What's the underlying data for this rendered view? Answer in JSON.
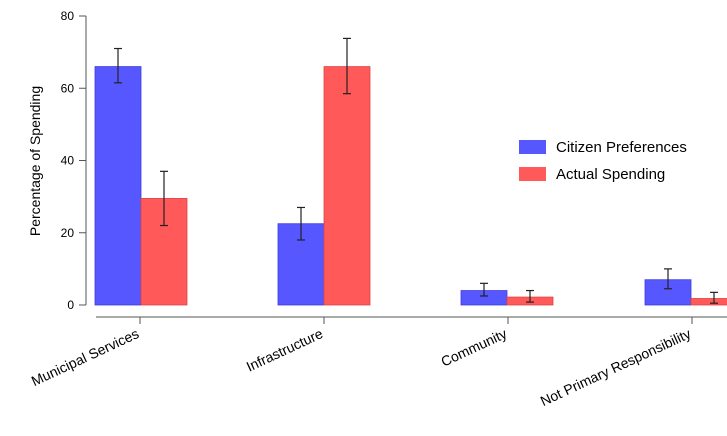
{
  "chart_data": {
    "type": "bar",
    "title": "",
    "xlabel": "",
    "ylabel": "Percentage of Spending",
    "ylim": [
      0,
      80
    ],
    "yticks": [
      0,
      20,
      40,
      60,
      80
    ],
    "grid": false,
    "legend_position": "right",
    "categories": [
      "Municipal Services",
      "Infrastructure",
      "Community",
      "Not Primary Responsibility"
    ],
    "series": [
      {
        "name": "Citizen Preferences",
        "color": "#5757ff",
        "values": [
          66,
          22.5,
          4,
          7
        ],
        "error_low": [
          61.5,
          18,
          2.5,
          4.5
        ],
        "error_high": [
          71,
          27,
          6,
          10
        ]
      },
      {
        "name": "Actual Spending",
        "color": "#ff5959",
        "values": [
          29.5,
          66,
          2.2,
          1.8
        ],
        "error_low": [
          22,
          58.5,
          0.8,
          0.5
        ],
        "error_high": [
          37,
          73.8,
          4,
          3.5
        ]
      }
    ]
  }
}
